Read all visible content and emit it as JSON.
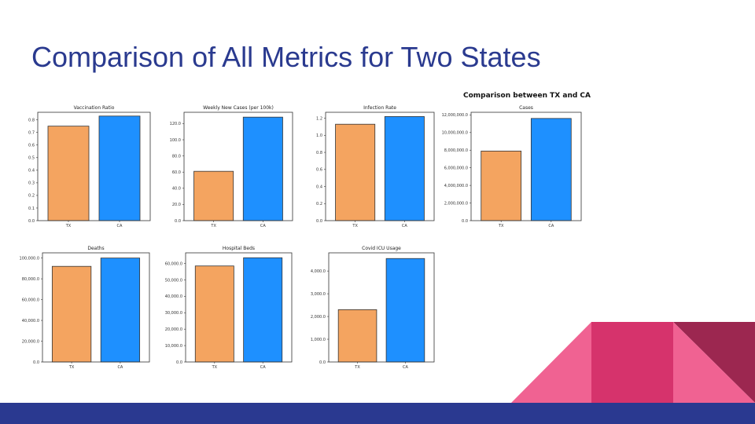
{
  "slide": {
    "title": "Comparison of All Metrics for Two States",
    "figure_title": "Comparison between TX and CA"
  },
  "colors": {
    "title": "#2a3a8f",
    "footer": "#2a3990",
    "tx_bar": "#f4a460",
    "ca_bar": "#1e90ff",
    "decor_pink": "#f06292",
    "decor_magenta": "#d6336c",
    "decor_maroon": "#9c2750"
  },
  "chart_data": [
    {
      "type": "bar",
      "title": "Vaccination Ratio",
      "categories": [
        "TX",
        "CA"
      ],
      "values": [
        0.75,
        0.83
      ],
      "ylim": [
        0,
        0.86
      ],
      "yticks": [
        0,
        0.1,
        0.2,
        0.3,
        0.4,
        0.5,
        0.6,
        0.7,
        0.8
      ],
      "tick_labels": [
        "0.0",
        "0.1",
        "0.2",
        "0.3",
        "0.4",
        "0.5",
        "0.6",
        "0.7",
        "0.8"
      ]
    },
    {
      "type": "bar",
      "title": "Weekly New Cases (per 100k)",
      "categories": [
        "TX",
        "CA"
      ],
      "values": [
        61,
        128
      ],
      "ylim": [
        0,
        134
      ],
      "yticks": [
        0,
        20,
        40,
        60,
        80,
        100,
        120
      ],
      "tick_labels": [
        "0.0",
        "20.0",
        "40.0",
        "60.0",
        "80.0",
        "100.0",
        "120.0"
      ]
    },
    {
      "type": "bar",
      "title": "Infection Rate",
      "categories": [
        "TX",
        "CA"
      ],
      "values": [
        1.13,
        1.22
      ],
      "ylim": [
        0,
        1.27
      ],
      "yticks": [
        0,
        0.2,
        0.4,
        0.6,
        0.8,
        1.0,
        1.2
      ],
      "tick_labels": [
        "0.0",
        "0.2",
        "0.4",
        "0.6",
        "0.8",
        "1.0",
        "1.2"
      ]
    },
    {
      "type": "bar",
      "title": "Cases",
      "categories": [
        "TX",
        "CA"
      ],
      "values": [
        7900000,
        11600000
      ],
      "ylim": [
        0,
        12300000
      ],
      "yticks": [
        0,
        2000000,
        4000000,
        6000000,
        8000000,
        10000000,
        12000000
      ],
      "tick_labels": [
        "0.0",
        "2,000,000.0",
        "4,000,000.0",
        "6,000,000.0",
        "8,000,000.0",
        "10,000,000.0",
        "12,000,000.0"
      ]
    },
    {
      "type": "bar",
      "title": "Deaths",
      "categories": [
        "TX",
        "CA"
      ],
      "values": [
        92000,
        100000
      ],
      "ylim": [
        0,
        105000
      ],
      "yticks": [
        0,
        20000,
        40000,
        60000,
        80000,
        100000
      ],
      "tick_labels": [
        "0.0",
        "20,000.0",
        "40,000.0",
        "60,000.0",
        "80,000.0",
        "100,000.0"
      ]
    },
    {
      "type": "bar",
      "title": "Hospital Beds",
      "categories": [
        "TX",
        "CA"
      ],
      "values": [
        58500,
        63500
      ],
      "ylim": [
        0,
        66500
      ],
      "yticks": [
        0,
        10000,
        20000,
        30000,
        40000,
        50000,
        60000
      ],
      "tick_labels": [
        "0.0",
        "10,000.0",
        "20,000.0",
        "30,000.0",
        "40,000.0",
        "50,000.0",
        "60,000.0"
      ]
    },
    {
      "type": "bar",
      "title": "Covid ICU Usage",
      "categories": [
        "TX",
        "CA"
      ],
      "values": [
        2300,
        4550
      ],
      "ylim": [
        0,
        4800
      ],
      "yticks": [
        0,
        1000,
        2000,
        3000,
        4000
      ],
      "tick_labels": [
        "0.0",
        "1,000.0",
        "2,000.0",
        "3,000.0",
        "4,000.0"
      ]
    }
  ]
}
